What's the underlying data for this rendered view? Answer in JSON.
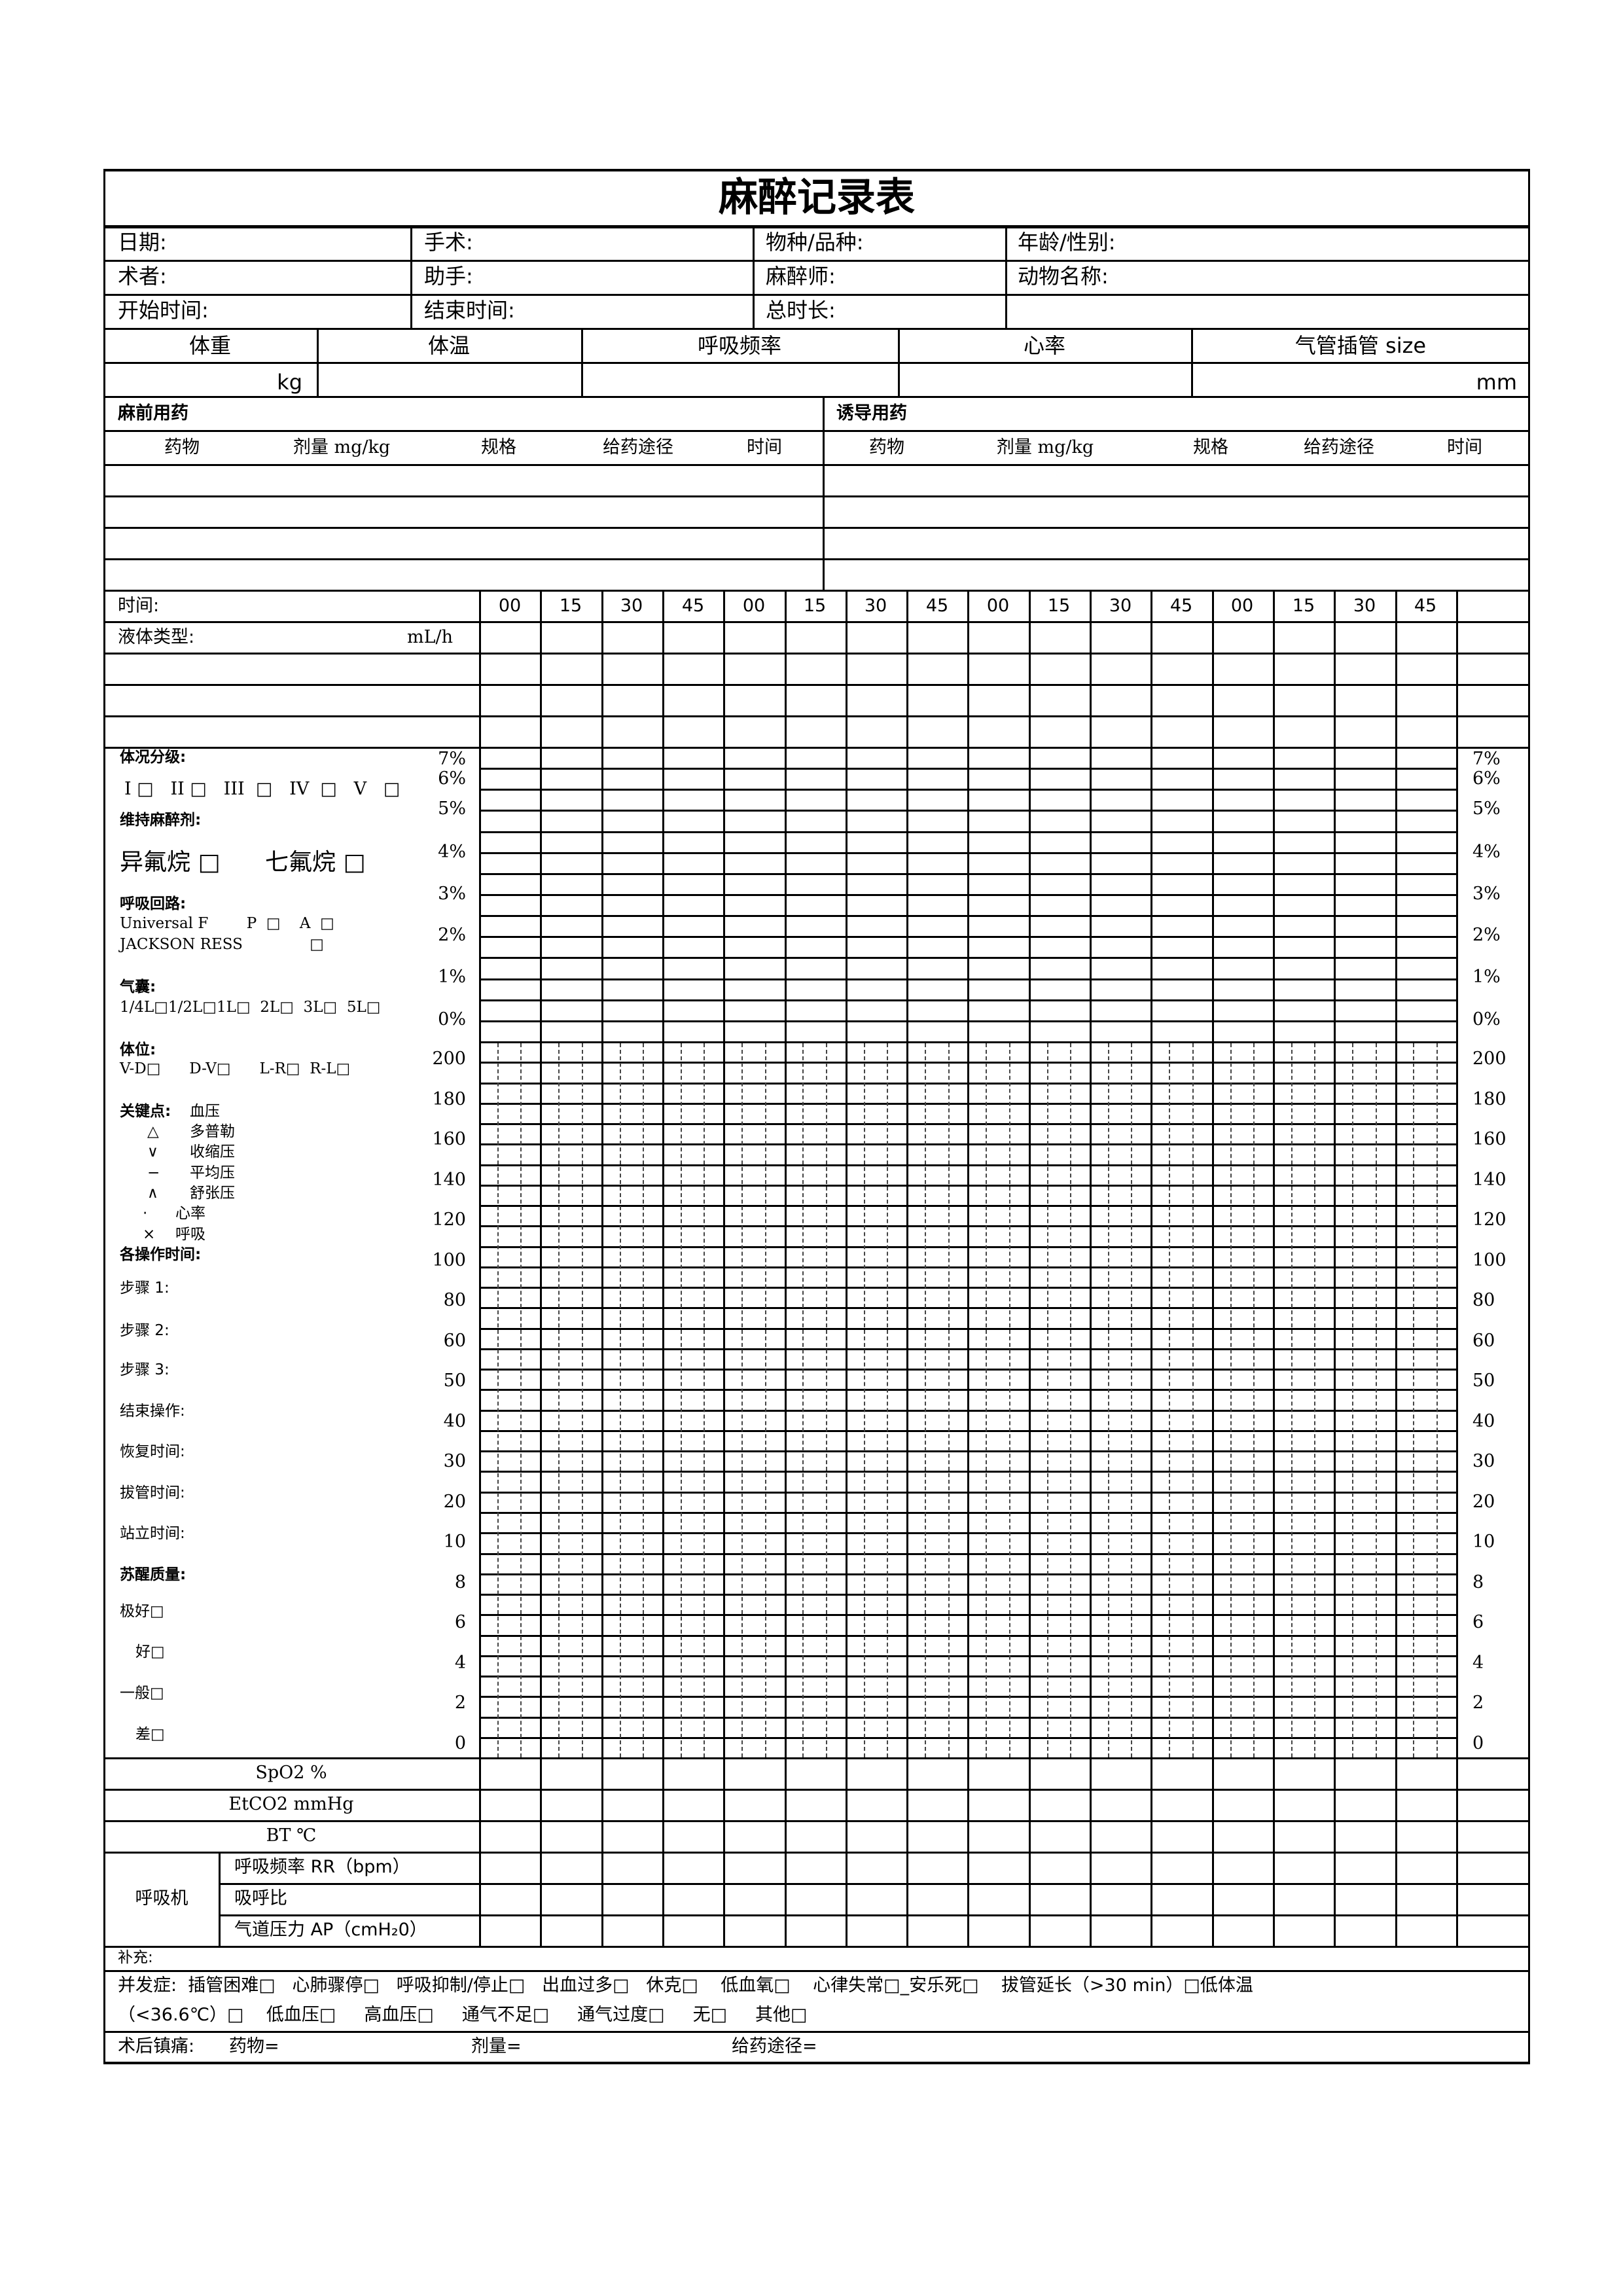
{
  "title": "麻醉记录表",
  "info": {
    "date": "日期:",
    "surgery": "手术:",
    "species": "物种/品种:",
    "age_sex": "年龄/性别:",
    "surgeon": "术者:",
    "assistant": "助手:",
    "anesthetist": "麻醉师:",
    "animal_name": "动物名称:",
    "start_time": "开始时间:",
    "end_time": "结束时间:",
    "duration": "总时长:"
  },
  "vitals": {
    "headers": [
      "体重",
      "体温",
      "呼吸频率",
      "心率",
      "气管插管  size"
    ],
    "weight_unit": "kg",
    "tube_unit": "mm"
  },
  "premed": {
    "title": "麻前用药",
    "columns": [
      "药物",
      "剂量 mg/kg",
      "规格",
      "给药途径",
      "时间"
    ]
  },
  "induction": {
    "title": "诱导用药",
    "columns": [
      "药物",
      "剂量 mg/kg",
      "规格",
      "给药途径",
      "时间"
    ]
  },
  "time_row": {
    "label": "时间:",
    "ticks": [
      "00",
      "15",
      "30",
      "45",
      "00",
      "15",
      "30",
      "45",
      "00",
      "15",
      "30",
      "45",
      "00",
      "15",
      "30",
      "45"
    ]
  },
  "fluid": {
    "label": "液体类型:",
    "unit": "mL/h"
  },
  "percent_axis": [
    "7%",
    "6%",
    "5%",
    "4%",
    "3%",
    "2%",
    "1%",
    "0%"
  ],
  "value_axis": [
    "200",
    "180",
    "160",
    "140",
    "120",
    "100",
    "80",
    "60",
    "50",
    "40",
    "30",
    "20",
    "10",
    "8",
    "6",
    "4",
    "2",
    "0"
  ],
  "left_panel": {
    "asa_title": "体况分级:",
    "asa_options": "I □   II □   III  □   IV  □   V   □",
    "maint_title": "维持麻醉剂:",
    "maint_options": [
      "异氟烷 □",
      "七氟烷 □"
    ],
    "circuit_title": "呼吸回路:",
    "circuit_universal": "Universal F        P  □    A  □",
    "circuit_jackson": "JACKSON RESS              □",
    "bag_title": "气囊:",
    "bag_options": "1/4L□1/2L□1L□  2L□  3L□  5L□",
    "position_title": "体位:",
    "position_options": "V-D□      D-V□      L-R□  R-L□",
    "key_title": "关键点:",
    "key_bp": "血压",
    "legend": [
      {
        "symbol": "△",
        "label": "多普勒"
      },
      {
        "symbol": "∨",
        "label": "收缩压"
      },
      {
        "symbol": "−",
        "label": "平均压"
      },
      {
        "symbol": "∧",
        "label": "舒张压"
      },
      {
        "symbol": "·",
        "label": "心率"
      },
      {
        "symbol": "×",
        "label": "呼吸"
      }
    ],
    "ops_title": "各操作时间:",
    "ops": [
      "步骤 1:",
      "步骤 2:",
      "步骤 3:",
      "结束操作:",
      "恢复时间:",
      "拔管时间:",
      "站立时间:"
    ],
    "recovery_title": "苏醒质量:",
    "recovery_options": [
      "极好□",
      "好□",
      "一般□",
      "差□"
    ]
  },
  "monitor_rows": [
    "SpO2 %",
    "EtCO2 mmHg",
    "BT  ℃"
  ],
  "ventilator": {
    "label": "呼吸机",
    "rows": [
      "呼吸频率 RR（bpm）",
      "吸呼比",
      "气道压力 AP（cmH₂0）"
    ]
  },
  "notes_label": "补充:",
  "complications": {
    "line1": "并发症:  插管困难□   心肺骤停□   呼吸抑制/停止□   出血过多□   休克□    低血氧□    心律失常□_安乐死□    拔管延长（>30 min）□低体温",
    "line2": "（<36.6℃）□    低血压□     高血压□     通气不足□     通气过度□     无□     其他□"
  },
  "postop": {
    "label": "术后镇痛:",
    "drug": "药物=",
    "dose": "剂量=",
    "route": "给药途径="
  }
}
